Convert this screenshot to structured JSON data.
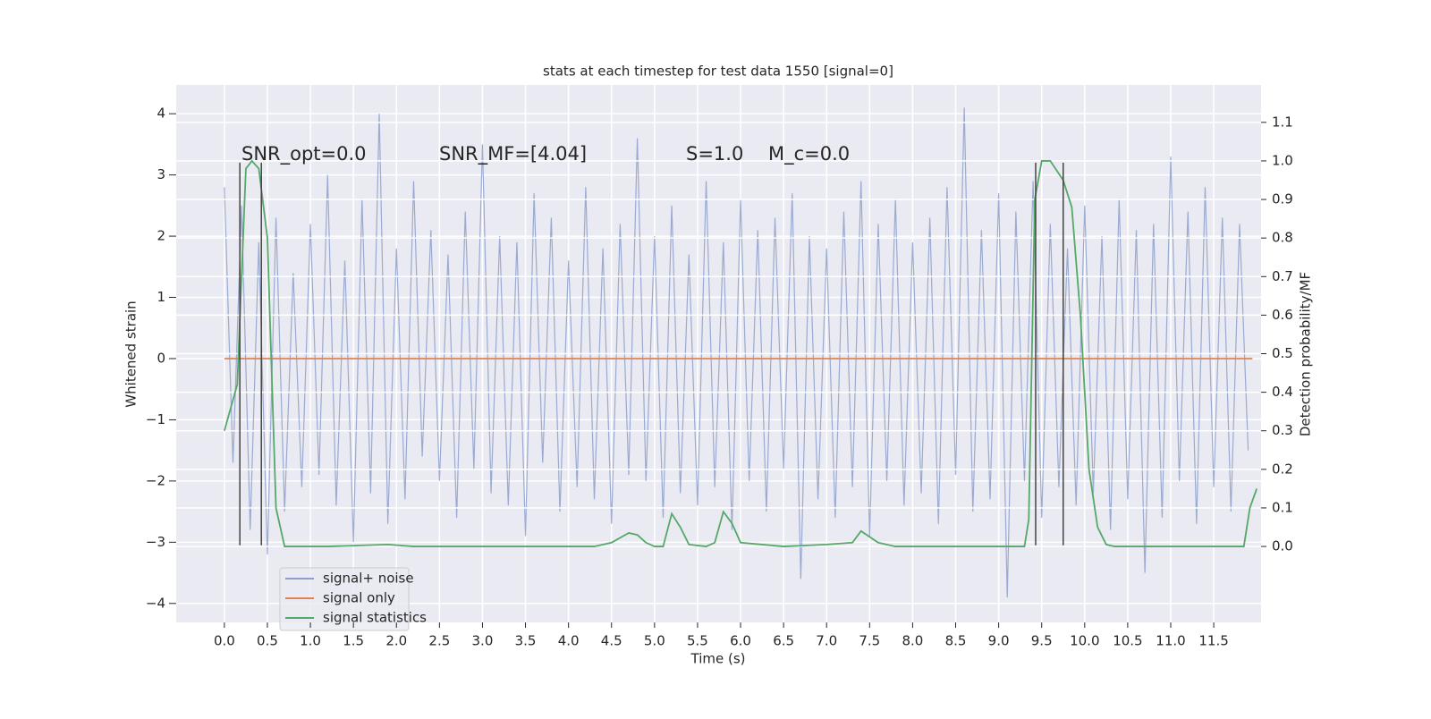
{
  "chart_data": {
    "type": "line",
    "title": "stats at each timestep for test data 1550 [signal=0]",
    "xlabel": "Time (s)",
    "ylabel": "Whitened strain",
    "y2label": "Detection probability/MF",
    "xlim": [
      -0.56,
      12.05
    ],
    "ylim": [
      -4.31,
      4.47
    ],
    "y2lim": [
      -0.197,
      1.197
    ],
    "xticks": [
      {
        "value": 0,
        "label": "0.0"
      },
      {
        "value": 0.5,
        "label": "0.5"
      },
      {
        "value": 1,
        "label": "1.0"
      },
      {
        "value": 1.5,
        "label": "1.5"
      },
      {
        "value": 2,
        "label": "2.0"
      },
      {
        "value": 2.5,
        "label": "2.5"
      },
      {
        "value": 3,
        "label": "3.0"
      },
      {
        "value": 3.5,
        "label": "3.5"
      },
      {
        "value": 4,
        "label": "4.0"
      },
      {
        "value": 4.5,
        "label": "4.5"
      },
      {
        "value": 5,
        "label": "5.0"
      },
      {
        "value": 5.5,
        "label": "5.5"
      },
      {
        "value": 6,
        "label": "6.0"
      },
      {
        "value": 6.5,
        "label": "6.5"
      },
      {
        "value": 7,
        "label": "7.0"
      },
      {
        "value": 7.5,
        "label": "7.5"
      },
      {
        "value": 8,
        "label": "8.0"
      },
      {
        "value": 8.5,
        "label": "8.5"
      },
      {
        "value": 9,
        "label": "9.0"
      },
      {
        "value": 9.5,
        "label": "9.5"
      },
      {
        "value": 10,
        "label": "10.0"
      },
      {
        "value": 10.5,
        "label": "10.5"
      },
      {
        "value": 11,
        "label": "11.0"
      },
      {
        "value": 11.5,
        "label": "11.5"
      }
    ],
    "yticks": [
      {
        "value": -4,
        "label": "−4"
      },
      {
        "value": -3,
        "label": "−3"
      },
      {
        "value": -2,
        "label": "−2"
      },
      {
        "value": -1,
        "label": "−1"
      },
      0,
      1,
      2,
      3,
      4
    ],
    "y2ticks": [
      {
        "value": 0,
        "label": "0.0"
      },
      {
        "value": 0.1,
        "label": "0.1"
      },
      {
        "value": 0.2,
        "label": "0.2"
      },
      {
        "value": 0.3,
        "label": "0.3"
      },
      {
        "value": 0.4,
        "label": "0.4"
      },
      {
        "value": 0.5,
        "label": "0.5"
      },
      {
        "value": 0.6,
        "label": "0.6"
      },
      {
        "value": 0.7,
        "label": "0.7"
      },
      {
        "value": 0.8,
        "label": "0.8"
      },
      {
        "value": 0.9,
        "label": "0.9"
      },
      {
        "value": 1,
        "label": "1.0"
      },
      {
        "value": 1.1,
        "label": "1.1"
      }
    ],
    "grid": true,
    "legend": "lower left",
    "series": [
      {
        "name": "signal+ noise",
        "color": "#8c9fcb",
        "x": [
          0.0,
          0.1,
          0.2,
          0.3,
          0.4,
          0.5,
          0.6,
          0.7,
          0.8,
          0.9,
          1.0,
          1.1,
          1.2,
          1.3,
          1.4,
          1.5,
          1.6,
          1.7,
          1.8,
          1.9,
          2.0,
          2.1,
          2.2,
          2.3,
          2.4,
          2.5,
          2.6,
          2.7,
          2.8,
          2.9,
          3.0,
          3.1,
          3.2,
          3.3,
          3.4,
          3.5,
          3.6,
          3.7,
          3.8,
          3.9,
          4.0,
          4.1,
          4.2,
          4.3,
          4.4,
          4.5,
          4.6,
          4.7,
          4.8,
          4.9,
          5.0,
          5.1,
          5.2,
          5.3,
          5.4,
          5.5,
          5.6,
          5.7,
          5.8,
          5.9,
          6.0,
          6.1,
          6.2,
          6.3,
          6.4,
          6.5,
          6.6,
          6.7,
          6.8,
          6.9,
          7.0,
          7.1,
          7.2,
          7.3,
          7.4,
          7.5,
          7.6,
          7.7,
          7.8,
          7.9,
          8.0,
          8.1,
          8.2,
          8.3,
          8.4,
          8.5,
          8.6,
          8.7,
          8.8,
          8.9,
          9.0,
          9.1,
          9.2,
          9.3,
          9.4,
          9.5,
          9.6,
          9.7,
          9.8,
          9.9,
          10.0,
          10.1,
          10.2,
          10.3,
          10.4,
          10.5,
          10.6,
          10.7,
          10.8,
          10.9,
          11.0,
          11.1,
          11.2,
          11.3,
          11.4,
          11.5,
          11.6,
          11.7,
          11.8,
          11.9
        ],
        "values": [
          2.8,
          -1.7,
          2.5,
          -2.8,
          1.9,
          -3.2,
          2.3,
          -2.5,
          1.4,
          -2.1,
          2.2,
          -1.9,
          3.0,
          -2.4,
          1.6,
          -3.0,
          2.6,
          -2.2,
          4.0,
          -2.7,
          1.8,
          -2.3,
          2.9,
          -1.6,
          2.1,
          -2.0,
          1.7,
          -2.6,
          2.4,
          -1.8,
          3.5,
          -2.2,
          2.0,
          -2.4,
          1.9,
          -2.9,
          2.7,
          -1.7,
          2.3,
          -2.5,
          1.6,
          -2.1,
          2.8,
          -2.3,
          1.8,
          -2.7,
          2.2,
          -1.9,
          3.6,
          -2.0,
          2.0,
          -2.6,
          2.5,
          -2.2,
          1.7,
          -2.4,
          2.9,
          -2.1,
          1.9,
          -2.8,
          2.6,
          -2.0,
          2.1,
          -2.5,
          2.3,
          -1.8,
          2.7,
          -3.6,
          2.0,
          -2.3,
          1.8,
          -2.6,
          2.4,
          -2.1,
          2.9,
          -2.9,
          2.2,
          -2.0,
          2.6,
          -2.4,
          1.9,
          -2.2,
          2.3,
          -2.7,
          2.8,
          -1.9,
          4.1,
          -2.5,
          2.1,
          -2.3,
          2.7,
          -3.9,
          2.4,
          -2.0,
          2.9,
          -2.6,
          2.2,
          -2.1,
          1.8,
          -2.4,
          2.5,
          -2.2,
          2.0,
          -2.8,
          2.6,
          -2.3,
          2.1,
          -3.5,
          2.2,
          -2.6,
          3.3,
          -2.0,
          2.4,
          -2.7,
          2.8,
          -2.1,
          2.3,
          -2.5,
          2.2,
          -1.5
        ]
      },
      {
        "name": "signal only",
        "color": "#dd8452",
        "x": [
          0.0,
          11.95
        ],
        "values": [
          0,
          0
        ]
      },
      {
        "name": "signal statistics",
        "color": "#55a868",
        "axis": "y2",
        "x": [
          0.0,
          0.15,
          0.25,
          0.32,
          0.4,
          0.5,
          0.6,
          0.7,
          1.2,
          1.9,
          2.2,
          4.3,
          4.5,
          4.7,
          4.8,
          4.9,
          5.0,
          5.1,
          5.2,
          5.3,
          5.4,
          5.6,
          5.7,
          5.8,
          5.9,
          6.0,
          6.5,
          7.0,
          7.3,
          7.4,
          7.6,
          7.8,
          9.3,
          9.35,
          9.42,
          9.5,
          9.6,
          9.75,
          9.85,
          9.95,
          10.05,
          10.15,
          10.25,
          10.35,
          11.85,
          11.92,
          12.0
        ],
        "values": [
          0.3,
          0.42,
          0.98,
          1.0,
          0.98,
          0.8,
          0.1,
          0.0,
          0.0,
          0.005,
          0.0,
          0.0,
          0.01,
          0.035,
          0.03,
          0.01,
          0.0,
          0.0,
          0.085,
          0.05,
          0.005,
          0.0,
          0.01,
          0.09,
          0.06,
          0.01,
          0.0,
          0.005,
          0.01,
          0.04,
          0.01,
          0.0,
          0.0,
          0.07,
          0.9,
          1.0,
          1.0,
          0.95,
          0.88,
          0.6,
          0.2,
          0.05,
          0.005,
          0.0,
          0.0,
          0.1,
          0.15
        ]
      }
    ],
    "vlines": {
      "x": [
        0.18,
        0.43,
        9.43,
        9.75
      ],
      "ymin": -3.05,
      "ymax": 3.2
    },
    "annotations": [
      "SNR_opt=0.0",
      "SNR_MF=[4.04]",
      "S=1.0",
      "M_c=0.0"
    ]
  }
}
